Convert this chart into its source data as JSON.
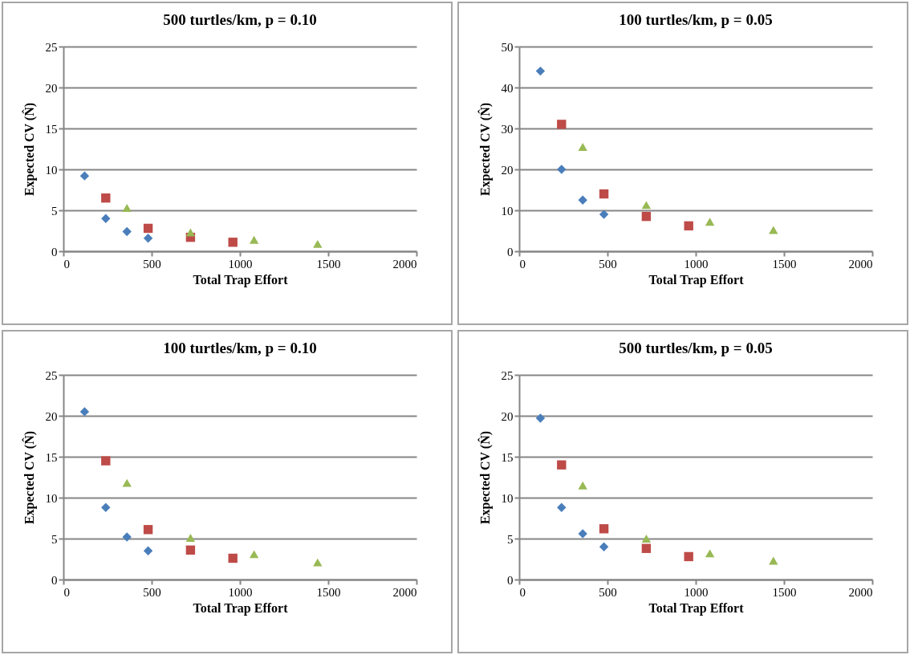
{
  "chart_data": [
    {
      "type": "scatter",
      "title": "500 turtles/km, p = 0.10",
      "xlabel": "Total Trap Effort",
      "ylabel": "Expected CV (N̂)",
      "xlim": [
        0,
        2000
      ],
      "xticks": [
        0,
        500,
        1000,
        1500,
        2000
      ],
      "ylim": [
        0,
        25
      ],
      "yticks": [
        0,
        5,
        10,
        15,
        20,
        25
      ],
      "grid": "y",
      "series": [
        {
          "color": "#4a7ebb",
          "marker": "diamond",
          "x": [
            120,
            240,
            360,
            480
          ],
          "values": [
            9.2,
            4.0,
            2.4,
            1.6
          ]
        },
        {
          "color": "#be4b48",
          "marker": "square",
          "x": [
            240,
            480,
            720,
            960
          ],
          "values": [
            6.5,
            2.8,
            1.7,
            1.1
          ]
        },
        {
          "color": "#98b954",
          "marker": "triangle",
          "x": [
            360,
            720,
            1080,
            1440
          ],
          "values": [
            5.3,
            2.3,
            1.4,
            0.9
          ]
        }
      ]
    },
    {
      "type": "scatter",
      "title": "100 turtles/km, p = 0.05",
      "xlabel": "Total Trap Effort",
      "ylabel": "Expected CV (N̂)",
      "xlim": [
        0,
        2000
      ],
      "xticks": [
        0,
        500,
        1000,
        1500,
        2000
      ],
      "ylim": [
        0,
        50
      ],
      "yticks": [
        0,
        10,
        20,
        30,
        40,
        50
      ],
      "grid": "y",
      "series": [
        {
          "color": "#4a7ebb",
          "marker": "diamond",
          "x": [
            120,
            240,
            360,
            480
          ],
          "values": [
            44,
            20,
            12.5,
            9
          ]
        },
        {
          "color": "#be4b48",
          "marker": "square",
          "x": [
            240,
            480,
            720,
            960
          ],
          "values": [
            31,
            14,
            8.5,
            6.2
          ]
        },
        {
          "color": "#98b954",
          "marker": "triangle",
          "x": [
            360,
            720,
            1080,
            1440
          ],
          "values": [
            25.5,
            11.3,
            7.2,
            5.2
          ]
        }
      ]
    },
    {
      "type": "scatter",
      "title": "100 turtles/km, p = 0.10",
      "xlabel": "Total Trap Effort",
      "ylabel": "Expected CV (N̂)",
      "xlim": [
        0,
        2000
      ],
      "xticks": [
        0,
        500,
        1000,
        1500,
        2000
      ],
      "ylim": [
        0,
        25
      ],
      "yticks": [
        0,
        5,
        10,
        15,
        20,
        25
      ],
      "grid": "y",
      "series": [
        {
          "color": "#4a7ebb",
          "marker": "diamond",
          "x": [
            120,
            240,
            360,
            480
          ],
          "values": [
            20.5,
            8.8,
            5.2,
            3.5
          ]
        },
        {
          "color": "#be4b48",
          "marker": "square",
          "x": [
            240,
            480,
            720,
            960
          ],
          "values": [
            14.5,
            6.1,
            3.6,
            2.6
          ]
        },
        {
          "color": "#98b954",
          "marker": "triangle",
          "x": [
            360,
            720,
            1080,
            1440
          ],
          "values": [
            11.8,
            5.1,
            3.1,
            2.1
          ]
        }
      ]
    },
    {
      "type": "scatter",
      "title": "500 turtles/km, p = 0.05",
      "xlabel": "Total Trap Effort",
      "ylabel": "Expected CV (N̂)",
      "xlim": [
        0,
        2000
      ],
      "xticks": [
        0,
        500,
        1000,
        1500,
        2000
      ],
      "ylim": [
        0,
        25
      ],
      "yticks": [
        0,
        5,
        10,
        15,
        20,
        25
      ],
      "grid": "y",
      "series": [
        {
          "color": "#4a7ebb",
          "marker": "diamond",
          "x": [
            120,
            240,
            360,
            480
          ],
          "values": [
            19.7,
            8.8,
            5.6,
            4.0
          ]
        },
        {
          "color": "#be4b48",
          "marker": "square",
          "x": [
            240,
            480,
            720,
            960
          ],
          "values": [
            14.0,
            6.2,
            3.8,
            2.8
          ]
        },
        {
          "color": "#98b954",
          "marker": "triangle",
          "x": [
            360,
            720,
            1080,
            1440
          ],
          "values": [
            11.5,
            5.0,
            3.2,
            2.3
          ]
        }
      ]
    }
  ]
}
